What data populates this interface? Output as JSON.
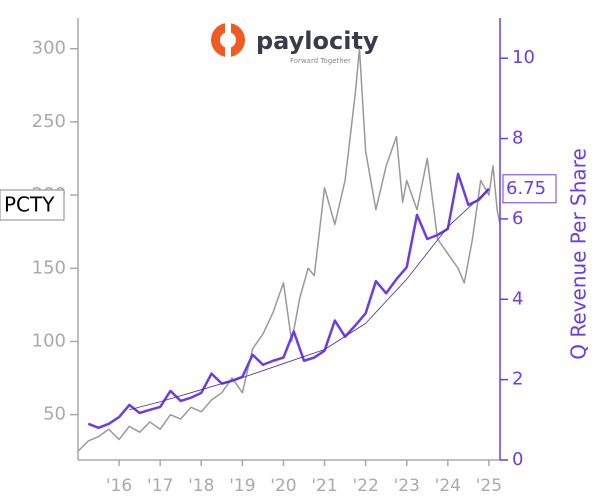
{
  "chart_data": {
    "type": "line",
    "title": "paylocity",
    "subtitle": "Forward Together",
    "ticker": "PCTY",
    "y2label": "Q Revenue Per Share",
    "xlim": [
      2015,
      2025.27
    ],
    "xticks": [
      {
        "value": 2016,
        "label": "'16"
      },
      {
        "value": 2017,
        "label": "'17"
      },
      {
        "value": 2018,
        "label": "'18"
      },
      {
        "value": 2019,
        "label": "'19"
      },
      {
        "value": 2020,
        "label": "'20"
      },
      {
        "value": 2021,
        "label": "'21"
      },
      {
        "value": 2022,
        "label": "'22"
      },
      {
        "value": 2023,
        "label": "'23"
      },
      {
        "value": 2024,
        "label": "'24"
      },
      {
        "value": 2025,
        "label": "'25"
      }
    ],
    "ylim": [
      19,
      321
    ],
    "yticks": [
      50,
      100,
      150,
      200,
      250,
      300
    ],
    "y2lim": [
      0,
      11
    ],
    "y2ticks": [
      0,
      2,
      4,
      6,
      8,
      10
    ],
    "series": [
      {
        "color": "#999999",
        "line_width": 1.5,
        "x": [
          2015.0,
          2015.25,
          2015.5,
          2015.75,
          2016.0,
          2016.25,
          2016.5,
          2016.75,
          2017.0,
          2017.25,
          2017.5,
          2017.75,
          2018.0,
          2018.25,
          2018.5,
          2018.75,
          2019.0,
          2019.25,
          2019.5,
          2019.75,
          2020.0,
          2020.2,
          2020.4,
          2020.6,
          2020.75,
          2021.0,
          2021.25,
          2021.5,
          2021.75,
          2021.85,
          2022.0,
          2022.25,
          2022.5,
          2022.75,
          2022.9,
          2023.0,
          2023.25,
          2023.5,
          2023.75,
          2024.0,
          2024.25,
          2024.4,
          2024.6,
          2024.8,
          2025.0,
          2025.1,
          2025.2,
          2025.27
        ],
        "values": [
          25,
          32,
          35,
          40,
          33,
          42,
          38,
          45,
          40,
          50,
          47,
          55,
          52,
          60,
          65,
          75,
          65,
          95,
          105,
          120,
          140,
          100,
          130,
          150,
          145,
          205,
          180,
          210,
          270,
          300,
          230,
          190,
          220,
          240,
          195,
          210,
          190,
          225,
          170,
          160,
          150,
          140,
          170,
          210,
          200,
          220,
          190,
          180
        ]
      },
      {
        "color": "#6a3de8",
        "line_width": 2.5,
        "axis": "y2",
        "x": [
          2015.25,
          2015.5,
          2015.75,
          2016.0,
          2016.25,
          2016.5,
          2016.75,
          2017.0,
          2017.25,
          2017.5,
          2017.75,
          2018.0,
          2018.25,
          2018.5,
          2018.75,
          2019.0,
          2019.25,
          2019.5,
          2019.75,
          2020.0,
          2020.25,
          2020.5,
          2020.75,
          2021.0,
          2021.25,
          2021.5,
          2021.75,
          2022.0,
          2022.25,
          2022.5,
          2022.75,
          2023.0,
          2023.25,
          2023.5,
          2023.75,
          2024.0,
          2024.25,
          2024.5,
          2024.75,
          2025.0
        ],
        "values": [
          0.9,
          0.8,
          0.9,
          1.07,
          1.37,
          1.17,
          1.25,
          1.32,
          1.72,
          1.47,
          1.55,
          1.67,
          2.15,
          1.9,
          1.97,
          2.07,
          2.62,
          2.37,
          2.47,
          2.55,
          3.2,
          2.47,
          2.55,
          2.72,
          3.47,
          3.07,
          3.35,
          3.65,
          4.45,
          4.15,
          4.5,
          4.8,
          6.1,
          5.5,
          5.6,
          5.75,
          7.12,
          6.35,
          6.47,
          6.75
        ]
      },
      {
        "color": "#4b2bb0",
        "line_width": 0.8,
        "axis": "y2",
        "x": [
          2016.25,
          2017.0,
          2018.0,
          2019.0,
          2020.0,
          2021.0,
          2022.0,
          2023.0,
          2024.0,
          2025.0
        ],
        "values": [
          1.25,
          1.45,
          1.75,
          2.05,
          2.4,
          2.75,
          3.4,
          4.5,
          5.8,
          6.75
        ]
      }
    ]
  }
}
